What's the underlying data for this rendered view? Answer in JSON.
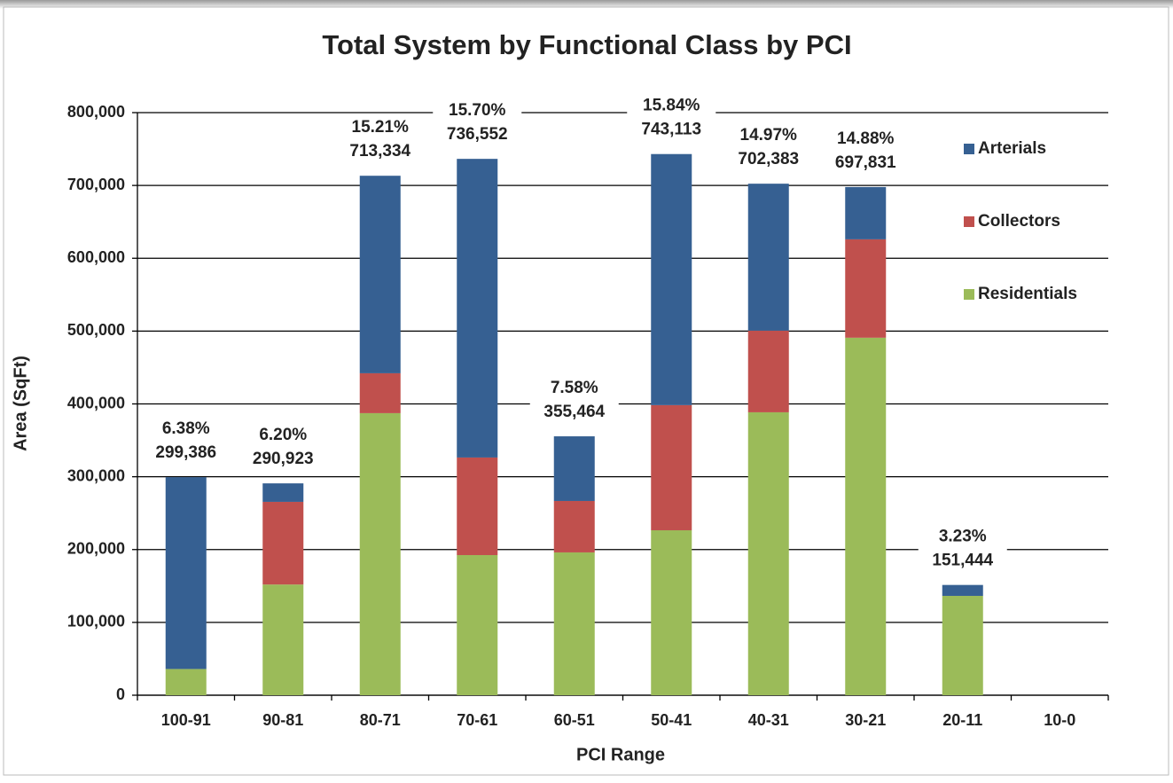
{
  "chart_data": {
    "type": "stacked_bar",
    "title": "Total System by Functional Class by PCI",
    "x_label": "PCI Range",
    "y_label": "Area (SqFt)",
    "categories": [
      "100-91",
      "90-81",
      "80-71",
      "70-61",
      "60-51",
      "50-41",
      "40-31",
      "30-21",
      "20-11",
      "10-0"
    ],
    "series": [
      {
        "name": "Arterials",
        "color": "#366092",
        "values": [
          263386,
          25400,
          271200,
          410100,
          88800,
          344800,
          201800,
          71800,
          15000,
          0
        ]
      },
      {
        "name": "Collectors",
        "color": "#c0504d",
        "values": [
          0,
          113500,
          54800,
          134000,
          70600,
          171800,
          112100,
          135100,
          0,
          0
        ]
      },
      {
        "name": "Residentials",
        "color": "#9bbb59",
        "values": [
          36000,
          152000,
          387300,
          192400,
          196100,
          226500,
          388500,
          490900,
          136400,
          0
        ]
      }
    ],
    "totals": [
      299386,
      290923,
      713334,
      736552,
      355464,
      743113,
      702383,
      697831,
      151444,
      null
    ],
    "total_labels": [
      "299,386",
      "290,923",
      "713,334",
      "736,552",
      "355,464",
      "743,113",
      "702,383",
      "697,831",
      "151,444",
      null
    ],
    "percents": [
      6.38,
      6.2,
      15.21,
      15.7,
      7.58,
      15.84,
      14.97,
      14.88,
      3.23,
      null
    ],
    "percent_labels": [
      "6.38%",
      "6.20%",
      "15.21%",
      "15.70%",
      "7.58%",
      "15.84%",
      "14.97%",
      "14.88%",
      "3.23%",
      null
    ],
    "ylim": [
      0,
      800000
    ],
    "yticks": [
      0,
      {
        "value": 100000,
        "label": "100,000"
      },
      {
        "value": 200000,
        "label": "200,000"
      },
      {
        "value": 300000,
        "label": "300,000"
      },
      {
        "value": 400000,
        "label": "400,000"
      },
      {
        "value": 500000,
        "label": "500,000"
      },
      {
        "value": 600000,
        "label": "600,000"
      },
      {
        "value": 700000,
        "label": "700,000"
      },
      {
        "value": 800000,
        "label": "800,000"
      }
    ],
    "grid": true,
    "legend": "upper right"
  }
}
